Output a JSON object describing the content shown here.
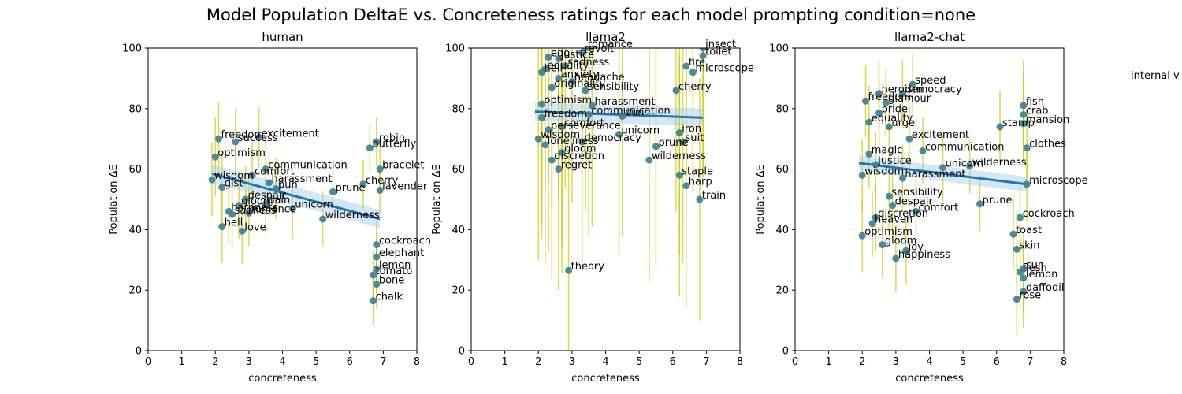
{
  "figure": {
    "suptitle": "Model Population DeltaE vs. Concreteness ratings for each model prompting condition=none",
    "side_label": "internal v"
  },
  "colors": {
    "point": "#3a7f8f",
    "errorbar": "#c8c800",
    "trend": "#1f77b4",
    "band": "#a6c8e8"
  },
  "chart_data": [
    {
      "type": "scatter",
      "title": "human",
      "xlabel": "concreteness",
      "ylabel": "Population ΔE",
      "xlim": [
        0,
        8
      ],
      "ylim": [
        0,
        100
      ],
      "xticks": [
        0,
        1,
        2,
        3,
        4,
        5,
        6,
        7,
        8
      ],
      "yticks": [
        0,
        20,
        40,
        60,
        80,
        100
      ],
      "grid": false,
      "trend": {
        "x": [
          1.9,
          6.9
        ],
        "y": [
          58.5,
          43.5
        ],
        "band": 3
      },
      "points": [
        {
          "label": "excitement",
          "x": 3.3,
          "y": 70.5,
          "err": 10
        },
        {
          "label": "freedom",
          "x": 2.1,
          "y": 70,
          "err": 12
        },
        {
          "label": "success",
          "x": 2.6,
          "y": 69,
          "err": 11
        },
        {
          "label": "optimism",
          "x": 2.0,
          "y": 64,
          "err": 13
        },
        {
          "label": "communication",
          "x": 3.5,
          "y": 60,
          "err": 10
        },
        {
          "label": "comfort",
          "x": 3.1,
          "y": 58,
          "err": 11
        },
        {
          "label": "wisdom",
          "x": 1.9,
          "y": 56.5,
          "err": 12
        },
        {
          "label": "harassment",
          "x": 3.6,
          "y": 55.5,
          "err": 10
        },
        {
          "label": "gist",
          "x": 2.2,
          "y": 54,
          "err": 12
        },
        {
          "label": "pun",
          "x": 3.8,
          "y": 53.5,
          "err": 10
        },
        {
          "label": "prune",
          "x": 5.5,
          "y": 52.5,
          "err": 9
        },
        {
          "label": "despair",
          "x": 2.9,
          "y": 50,
          "err": 11
        },
        {
          "label": "pain",
          "x": 3.5,
          "y": 48.5,
          "err": 10
        },
        {
          "label": "gloom",
          "x": 2.7,
          "y": 48,
          "err": 11
        },
        {
          "label": "unicorn",
          "x": 4.3,
          "y": 47,
          "err": 10
        },
        {
          "label": "romance",
          "x": 3.0,
          "y": 45.5,
          "err": 11
        },
        {
          "label": "sadness",
          "x": 2.5,
          "y": 45,
          "err": 11
        },
        {
          "label": "harpness",
          "x": 2.4,
          "y": 46,
          "err": 11
        },
        {
          "label": "hell",
          "x": 2.2,
          "y": 41,
          "err": 12
        },
        {
          "label": "love",
          "x": 2.8,
          "y": 39.5,
          "err": 11
        },
        {
          "label": "wilderness",
          "x": 5.2,
          "y": 43.5,
          "err": 9
        },
        {
          "label": "robin",
          "x": 6.8,
          "y": 69,
          "err": 8
        },
        {
          "label": "butterfly",
          "x": 6.6,
          "y": 67,
          "err": 8
        },
        {
          "label": "bracelet",
          "x": 6.9,
          "y": 60,
          "err": 8
        },
        {
          "label": "cherry",
          "x": 6.4,
          "y": 55,
          "err": 8
        },
        {
          "label": "lavender",
          "x": 6.9,
          "y": 53,
          "err": 8
        },
        {
          "label": "cockroach",
          "x": 6.8,
          "y": 35,
          "err": 8
        },
        {
          "label": "elephant",
          "x": 6.8,
          "y": 31,
          "err": 8
        },
        {
          "label": "lemon",
          "x": 6.8,
          "y": 27,
          "err": 8
        },
        {
          "label": "tomato",
          "x": 6.7,
          "y": 25,
          "err": 8
        },
        {
          "label": "bone",
          "x": 6.8,
          "y": 22,
          "err": 8
        },
        {
          "label": "chalk",
          "x": 6.7,
          "y": 16.5,
          "err": 8
        }
      ]
    },
    {
      "type": "scatter",
      "title": "llama2",
      "xlabel": "concreteness",
      "ylabel": "Population ΔE",
      "xlim": [
        0,
        8
      ],
      "ylim": [
        0,
        100
      ],
      "xticks": [
        0,
        1,
        2,
        3,
        4,
        5,
        6,
        7,
        8
      ],
      "yticks": [
        0,
        20,
        40,
        60,
        80,
        100
      ],
      "grid": false,
      "trend": {
        "x": [
          1.9,
          6.9
        ],
        "y": [
          79,
          77
        ],
        "band": 3
      },
      "points": [
        {
          "label": "romance",
          "x": 3.4,
          "y": 100,
          "err": 40
        },
        {
          "label": "revolt",
          "x": 3.3,
          "y": 98.5,
          "err": 40
        },
        {
          "label": "ego",
          "x": 2.3,
          "y": 97,
          "err": 40
        },
        {
          "label": "justice",
          "x": 2.6,
          "y": 96.5,
          "err": 40
        },
        {
          "label": "sadness",
          "x": 2.8,
          "y": 94,
          "err": 40
        },
        {
          "label": "hell",
          "x": 2.1,
          "y": 92,
          "err": 40
        },
        {
          "label": "equality",
          "x": 2.2,
          "y": 93,
          "err": 40
        },
        {
          "label": "anxiety",
          "x": 2.6,
          "y": 90,
          "err": 40
        },
        {
          "label": "headache",
          "x": 3.0,
          "y": 89,
          "err": 40
        },
        {
          "label": "originality",
          "x": 2.4,
          "y": 87,
          "err": 40
        },
        {
          "label": "sensibility",
          "x": 3.4,
          "y": 86,
          "err": 40
        },
        {
          "label": "optimism",
          "x": 2.1,
          "y": 81.5,
          "err": 40
        },
        {
          "label": "harassment",
          "x": 3.6,
          "y": 81,
          "err": 40
        },
        {
          "label": "freedom",
          "x": 2.1,
          "y": 77,
          "err": 40
        },
        {
          "label": "communication",
          "x": 3.5,
          "y": 78,
          "err": 40
        },
        {
          "label": "pun",
          "x": 4.5,
          "y": 77.5,
          "err": 40
        },
        {
          "label": "comfort",
          "x": 2.7,
          "y": 74,
          "err": 40
        },
        {
          "label": "perseverance",
          "x": 2.3,
          "y": 73,
          "err": 40
        },
        {
          "label": "wisdom",
          "x": 2.0,
          "y": 70,
          "err": 40
        },
        {
          "label": "democracy",
          "x": 3.3,
          "y": 69,
          "err": 40
        },
        {
          "label": "loneliness",
          "x": 2.2,
          "y": 68,
          "err": 40
        },
        {
          "label": "unicorn",
          "x": 4.4,
          "y": 71.5,
          "err": 40
        },
        {
          "label": "gloom",
          "x": 2.7,
          "y": 65.5,
          "err": 40
        },
        {
          "label": "discretion",
          "x": 2.4,
          "y": 63,
          "err": 40
        },
        {
          "label": "regret",
          "x": 2.6,
          "y": 60,
          "err": 40
        },
        {
          "label": "theory",
          "x": 2.9,
          "y": 26.5,
          "err": 40
        },
        {
          "label": "prune",
          "x": 5.5,
          "y": 67.5,
          "err": 40
        },
        {
          "label": "wilderness",
          "x": 5.3,
          "y": 63,
          "err": 40
        },
        {
          "label": "insect",
          "x": 6.9,
          "y": 100,
          "err": 40
        },
        {
          "label": "toilet",
          "x": 6.9,
          "y": 97.5,
          "err": 40
        },
        {
          "label": "fire",
          "x": 6.4,
          "y": 94,
          "err": 40
        },
        {
          "label": "microscope",
          "x": 6.6,
          "y": 92,
          "err": 40
        },
        {
          "label": "cherry",
          "x": 6.1,
          "y": 86,
          "err": 40
        },
        {
          "label": "iron",
          "x": 6.2,
          "y": 72,
          "err": 40
        },
        {
          "label": "suit",
          "x": 6.3,
          "y": 69,
          "err": 40
        },
        {
          "label": "staple",
          "x": 6.2,
          "y": 58,
          "err": 40
        },
        {
          "label": "harp",
          "x": 6.4,
          "y": 54.5,
          "err": 40
        },
        {
          "label": "train",
          "x": 6.8,
          "y": 50,
          "err": 40
        }
      ]
    },
    {
      "type": "scatter",
      "title": "llama2-chat",
      "xlabel": "concreteness",
      "ylabel": "Population ΔE",
      "xlim": [
        0,
        8
      ],
      "ylim": [
        0,
        100
      ],
      "xticks": [
        0,
        1,
        2,
        3,
        4,
        5,
        6,
        7,
        8
      ],
      "yticks": [
        0,
        20,
        40,
        60,
        80,
        100
      ],
      "grid": false,
      "trend": {
        "x": [
          1.9,
          6.9
        ],
        "y": [
          62,
          55
        ],
        "band": 2.5
      },
      "points": [
        {
          "label": "speed",
          "x": 3.5,
          "y": 88,
          "err": 10
        },
        {
          "label": "heroism",
          "x": 2.5,
          "y": 85,
          "err": 11
        },
        {
          "label": "democracy",
          "x": 3.2,
          "y": 85,
          "err": 11
        },
        {
          "label": "freedom",
          "x": 2.1,
          "y": 82.5,
          "err": 12
        },
        {
          "label": "glamour",
          "x": 2.7,
          "y": 82,
          "err": 11
        },
        {
          "label": "pride",
          "x": 2.5,
          "y": 78.5,
          "err": 11
        },
        {
          "label": "equality",
          "x": 2.2,
          "y": 75.5,
          "err": 12
        },
        {
          "label": "urge",
          "x": 2.8,
          "y": 74,
          "err": 11
        },
        {
          "label": "excitement",
          "x": 3.4,
          "y": 70,
          "err": 11
        },
        {
          "label": "communication",
          "x": 3.8,
          "y": 66,
          "err": 11
        },
        {
          "label": "magic",
          "x": 2.2,
          "y": 65,
          "err": 11
        },
        {
          "label": "justice",
          "x": 2.4,
          "y": 61.5,
          "err": 11
        },
        {
          "label": "unicorn",
          "x": 4.4,
          "y": 60.5,
          "err": 11
        },
        {
          "label": "wisdom",
          "x": 2.0,
          "y": 58,
          "err": 12
        },
        {
          "label": "harassment",
          "x": 3.2,
          "y": 57,
          "err": 11
        },
        {
          "label": "sensibility",
          "x": 2.8,
          "y": 51,
          "err": 11
        },
        {
          "label": "despair",
          "x": 2.9,
          "y": 48,
          "err": 11
        },
        {
          "label": "comfort",
          "x": 3.6,
          "y": 46,
          "err": 11
        },
        {
          "label": "discretion",
          "x": 2.4,
          "y": 44,
          "err": 11
        },
        {
          "label": "heaven",
          "x": 2.3,
          "y": 42,
          "err": 11
        },
        {
          "label": "optimism",
          "x": 2.0,
          "y": 38,
          "err": 12
        },
        {
          "label": "gloom",
          "x": 2.6,
          "y": 35,
          "err": 11
        },
        {
          "label": "joy",
          "x": 3.3,
          "y": 33,
          "err": 11
        },
        {
          "label": "happiness",
          "x": 3.0,
          "y": 30.5,
          "err": 11
        },
        {
          "label": "wilderness",
          "x": 5.2,
          "y": 61,
          "err": 9
        },
        {
          "label": "prune",
          "x": 5.5,
          "y": 48.5,
          "err": 9
        },
        {
          "label": "fish",
          "x": 6.8,
          "y": 81,
          "err": 15
        },
        {
          "label": "crab",
          "x": 6.8,
          "y": 78,
          "err": 15
        },
        {
          "label": "stamp",
          "x": 6.1,
          "y": 74,
          "err": 12
        },
        {
          "label": "mansion",
          "x": 6.8,
          "y": 75,
          "err": 12
        },
        {
          "label": "clothes",
          "x": 6.9,
          "y": 67,
          "err": 12
        },
        {
          "label": "microscope",
          "x": 6.9,
          "y": 55,
          "err": 12
        },
        {
          "label": "cockroach",
          "x": 6.7,
          "y": 44,
          "err": 12
        },
        {
          "label": "toast",
          "x": 6.5,
          "y": 38.5,
          "err": 12
        },
        {
          "label": "skin",
          "x": 6.6,
          "y": 33.5,
          "err": 12
        },
        {
          "label": "sun",
          "x": 6.8,
          "y": 27,
          "err": 12
        },
        {
          "label": "flesh",
          "x": 6.7,
          "y": 26,
          "err": 12
        },
        {
          "label": "lemon",
          "x": 6.8,
          "y": 24,
          "err": 12
        },
        {
          "label": "daffodil",
          "x": 6.8,
          "y": 19.5,
          "err": 12
        },
        {
          "label": "rose",
          "x": 6.6,
          "y": 17,
          "err": 12
        }
      ]
    }
  ]
}
